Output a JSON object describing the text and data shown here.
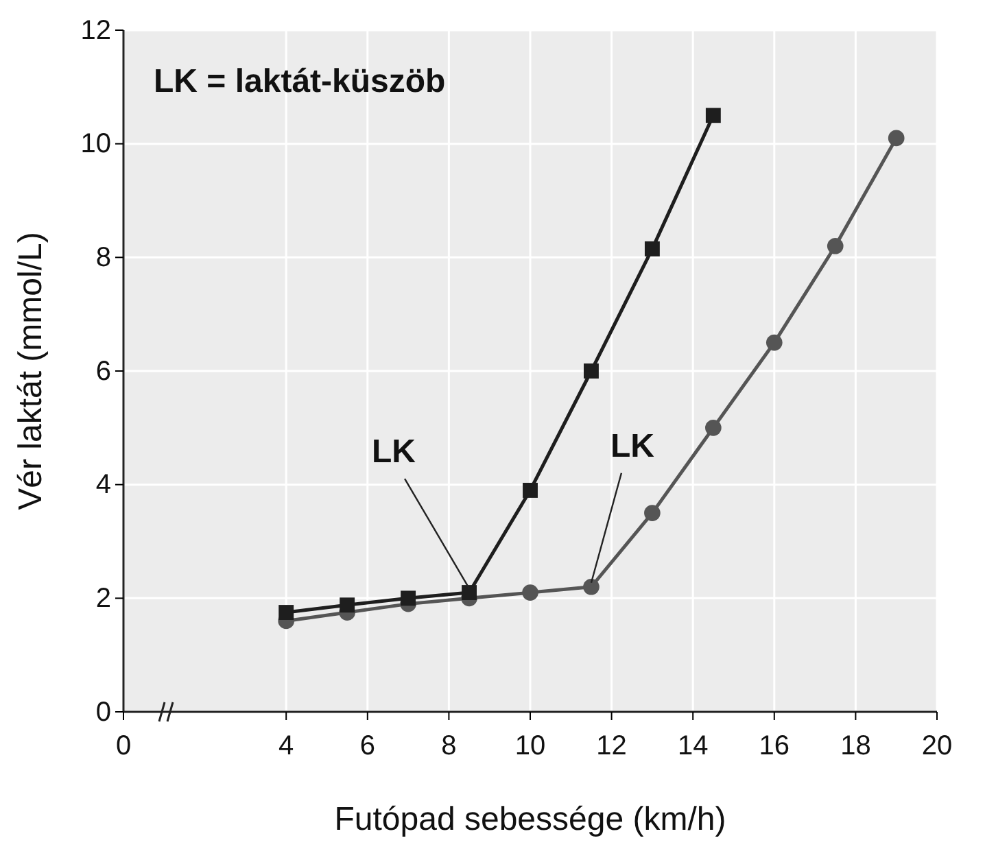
{
  "chart_data": {
    "type": "line",
    "xlabel": "Futópad sebessége (km/h)",
    "ylabel": "Vér laktát (mmol/L)",
    "xlim": [
      0,
      20
    ],
    "xticks": [
      0,
      4,
      6,
      8,
      10,
      12,
      14,
      16,
      18,
      20
    ],
    "ylim": [
      0,
      12
    ],
    "yticks": [
      0,
      2,
      4,
      6,
      8,
      10,
      12
    ],
    "grid": true,
    "annotations": [
      "LK = laktát-küszöb",
      {
        "text": "LK",
        "x": 8.5,
        "y": 2.1
      },
      {
        "text": "LK",
        "x": 11.5,
        "y": 2.2
      }
    ],
    "series": [
      {
        "color": "#555555",
        "marker": "circle",
        "x": [
          4,
          5.5,
          7,
          8.5,
          10,
          11.5,
          13,
          14.5,
          16,
          17.5,
          19
        ],
        "values": [
          1.6,
          1.75,
          1.9,
          2.0,
          2.1,
          2.2,
          3.5,
          5.0,
          6.5,
          8.2,
          10.1
        ]
      },
      {
        "color": "#1e1e1e",
        "marker": "square",
        "x": [
          4,
          5.5,
          7,
          8.5,
          10,
          11.5,
          13,
          14.5
        ],
        "values": [
          1.75,
          1.88,
          2.0,
          2.1,
          3.9,
          6.0,
          8.15,
          10.5
        ]
      }
    ]
  }
}
